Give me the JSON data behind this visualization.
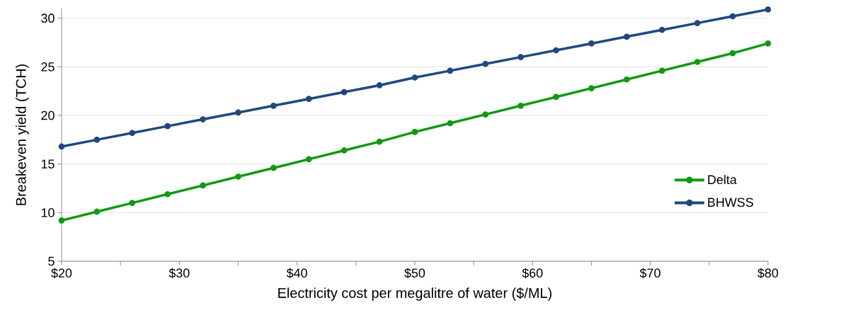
{
  "chart_data": {
    "type": "line",
    "xlabel": "Electricity cost per megalitre of water ($/ML)",
    "ylabel": "Breakeven yield (TCH)",
    "x": [
      20,
      23,
      26,
      29,
      32,
      35,
      38,
      41,
      44,
      47,
      50,
      53,
      56,
      59,
      62,
      65,
      68,
      71,
      74,
      77,
      80
    ],
    "series": [
      {
        "name": "Delta",
        "color": "#0f9a0f",
        "values": [
          9.2,
          10.1,
          11.0,
          11.9,
          12.8,
          13.7,
          14.6,
          15.5,
          16.4,
          17.3,
          18.3,
          19.2,
          20.1,
          21.0,
          21.9,
          22.8,
          23.7,
          24.6,
          25.5,
          26.4,
          27.4
        ]
      },
      {
        "name": "BHWSS",
        "color": "#1f497d",
        "values": [
          16.8,
          17.5,
          18.2,
          18.9,
          19.6,
          20.3,
          21.0,
          21.7,
          22.4,
          23.1,
          23.9,
          24.6,
          25.3,
          26.0,
          26.7,
          27.4,
          28.1,
          28.8,
          29.5,
          30.2,
          30.9
        ]
      }
    ],
    "xlim": [
      20,
      80
    ],
    "ylim": [
      5,
      31
    ],
    "xticks": [
      {
        "value": 20,
        "label": "$20"
      },
      {
        "value": 25,
        "label": null
      },
      {
        "value": 30,
        "label": "$30"
      },
      {
        "value": 35,
        "label": null
      },
      {
        "value": 40,
        "label": "$40"
      },
      {
        "value": 45,
        "label": null
      },
      {
        "value": 50,
        "label": "$50"
      },
      {
        "value": 55,
        "label": null
      },
      {
        "value": 60,
        "label": "$60"
      },
      {
        "value": 65,
        "label": null
      },
      {
        "value": 70,
        "label": "$70"
      },
      {
        "value": 75,
        "label": null
      },
      {
        "value": 80,
        "label": "$80"
      }
    ],
    "yticks": [
      5,
      10,
      15,
      20,
      25,
      30
    ],
    "grid": "y",
    "legend": "right",
    "marker": "circle",
    "line_style": "solid"
  }
}
